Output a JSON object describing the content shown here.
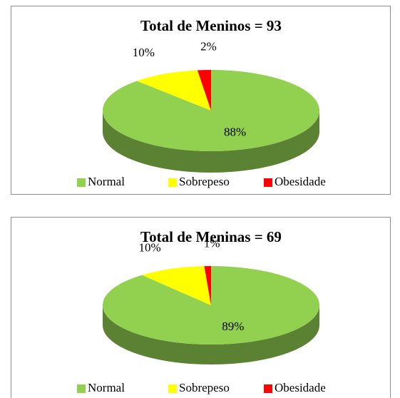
{
  "chart_data": [
    {
      "type": "pie",
      "title": "Total de Meninos = 93",
      "categories": [
        "Normal",
        "Sobrepeso",
        "Obesidade"
      ],
      "values": [
        88,
        10,
        2
      ],
      "value_labels": [
        "88%",
        "10%",
        "2%"
      ],
      "colors": [
        "#92d050",
        "#ffff00",
        "#ff0000"
      ],
      "legend": "bottom"
    },
    {
      "type": "pie",
      "title": "Total de Meninas = 69",
      "categories": [
        "Normal",
        "Sobrepeso",
        "Obesidade"
      ],
      "values": [
        89,
        10,
        1
      ],
      "value_labels": [
        "89%",
        "10%",
        "1%"
      ],
      "colors": [
        "#92d050",
        "#ffff00",
        "#ff0000"
      ],
      "legend": "bottom"
    }
  ]
}
